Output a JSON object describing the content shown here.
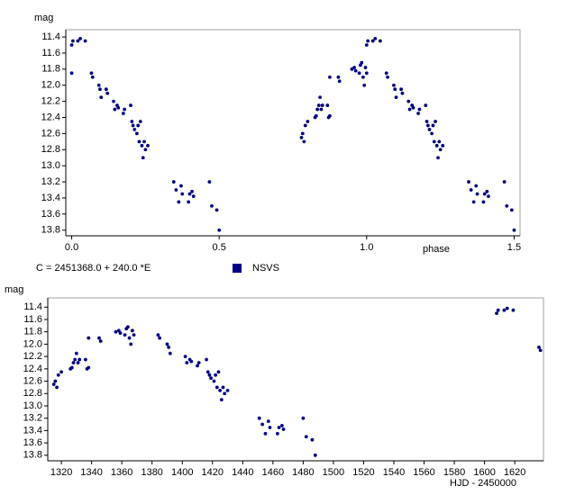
{
  "chart_data": [
    {
      "type": "scatter",
      "xlabel": "phase",
      "ylabel": "mag",
      "annotation": "C = 2451368.0 + 240.0 *E",
      "xlim": [
        -0.02,
        1.52
      ],
      "ylim": [
        13.87,
        11.31
      ],
      "xticks": [
        {
          "value": 0,
          "label": "0.0"
        },
        0.5,
        {
          "value": 1,
          "label": "1.0"
        },
        1.5
      ],
      "yticks": [
        11.4,
        11.6,
        11.8,
        {
          "value": 12,
          "label": "12.0"
        },
        12.2,
        12.4,
        12.6,
        12.8,
        {
          "value": 13,
          "label": "13.0"
        },
        13.2,
        13.4,
        13.6,
        13.8
      ],
      "x": [
        0.0,
        0.067,
        0.071,
        0.092,
        0.096,
        0.1,
        0.142,
        0.146,
        0.154,
        0.158,
        0.175,
        0.179,
        0.2,
        0.204,
        0.208,
        0.213,
        0.221,
        0.225,
        0.229,
        0.233,
        0.238,
        0.242,
        0.246,
        0.25,
        0.258,
        0.346,
        0.354,
        0.363,
        0.371,
        0.375,
        0.396,
        0.4,
        0.408,
        0.413,
        0.467,
        0.475,
        0.492,
        0.5,
        0.0,
        0.004,
        0.021,
        0.029,
        0.046,
        0.117,
        0.121,
        1.0,
        1.067,
        1.071,
        1.092,
        1.096,
        1.1,
        1.142,
        1.146,
        1.154,
        1.158,
        1.175,
        1.179,
        1.2,
        1.204,
        1.208,
        1.213,
        1.221,
        1.225,
        1.229,
        1.233,
        1.238,
        1.242,
        1.246,
        1.25,
        1.258,
        1.346,
        1.354,
        1.363,
        1.371,
        1.375,
        1.396,
        1.4,
        1.408,
        1.413,
        1.467,
        1.475,
        1.492,
        1.5,
        1.0,
        1.004,
        1.021,
        1.029,
        1.046,
        1.117,
        1.121,
        0.779,
        0.783,
        0.788,
        0.792,
        0.8,
        0.825,
        0.829,
        0.833,
        0.838,
        0.842,
        0.846,
        0.85,
        0.867,
        0.871,
        0.875,
        0.875,
        0.904,
        0.908,
        0.95,
        0.958,
        0.963,
        0.975,
        0.979,
        0.983,
        0.988,
        0.992,
        0.996
      ],
      "series": [
        {
          "name": "NSVS",
          "color": "#000080",
          "values": [
            11.85,
            11.85,
            11.9,
            12.0,
            12.05,
            12.15,
            12.2,
            12.3,
            12.25,
            12.28,
            12.35,
            12.3,
            12.25,
            12.45,
            12.5,
            12.55,
            12.6,
            12.5,
            12.7,
            12.45,
            12.75,
            12.9,
            12.7,
            12.8,
            12.75,
            13.2,
            13.3,
            13.45,
            13.25,
            13.35,
            13.45,
            13.35,
            13.32,
            13.38,
            13.2,
            13.5,
            13.55,
            13.8,
            11.5,
            11.45,
            11.45,
            11.42,
            11.45,
            12.05,
            12.1,
            11.85,
            11.85,
            11.9,
            12.0,
            12.05,
            12.15,
            12.2,
            12.3,
            12.25,
            12.28,
            12.35,
            12.3,
            12.25,
            12.45,
            12.5,
            12.55,
            12.6,
            12.5,
            12.7,
            12.45,
            12.75,
            12.9,
            12.7,
            12.8,
            12.75,
            13.2,
            13.3,
            13.45,
            13.25,
            13.35,
            13.45,
            13.35,
            13.32,
            13.38,
            13.2,
            13.5,
            13.55,
            13.8,
            11.5,
            11.45,
            11.45,
            11.42,
            11.45,
            12.05,
            12.1,
            12.65,
            12.6,
            12.7,
            12.5,
            12.45,
            12.4,
            12.38,
            12.3,
            12.25,
            12.15,
            12.3,
            12.25,
            12.25,
            12.4,
            12.38,
            11.9,
            11.9,
            11.95,
            11.8,
            11.78,
            11.82,
            11.85,
            11.75,
            11.72,
            11.9,
            12.0,
            11.78
          ]
        }
      ]
    },
    {
      "type": "scatter",
      "xlabel": "HJD - 2450000",
      "ylabel": "mag",
      "xlim": [
        1311,
        1639
      ],
      "ylim": [
        13.89,
        11.25
      ],
      "xticks": [
        1320,
        1340,
        1360,
        1380,
        1400,
        1420,
        1440,
        1460,
        1480,
        1500,
        1520,
        1540,
        1560,
        1580,
        1600,
        1620
      ],
      "yticks": [
        11.4,
        11.6,
        11.8,
        {
          "value": 12,
          "label": "12.0"
        },
        12.2,
        12.4,
        12.6,
        12.8,
        {
          "value": 13,
          "label": "13.0"
        },
        13.2,
        13.4,
        13.6,
        13.8
      ],
      "x": [
        1315,
        1316,
        1317,
        1318,
        1320,
        1326,
        1327,
        1328,
        1329,
        1330,
        1331,
        1332,
        1336,
        1337,
        1338,
        1338,
        1345,
        1346,
        1356,
        1358,
        1359,
        1362,
        1363,
        1364,
        1365,
        1366,
        1367,
        1368,
        1384,
        1385,
        1390,
        1391,
        1392,
        1402,
        1403,
        1405,
        1406,
        1410,
        1411,
        1416,
        1417,
        1418,
        1419,
        1421,
        1422,
        1423,
        1424,
        1425,
        1426,
        1427,
        1428,
        1430,
        1451,
        1453,
        1455,
        1457,
        1458,
        1463,
        1464,
        1466,
        1467,
        1480,
        1482,
        1486,
        1488,
        1608,
        1609,
        1613,
        1615,
        1619,
        1636,
        1637
      ],
      "series": [
        {
          "color": "#000080",
          "values": [
            12.65,
            12.6,
            12.7,
            12.5,
            12.45,
            12.4,
            12.38,
            12.3,
            12.25,
            12.15,
            12.3,
            12.25,
            12.25,
            12.4,
            12.38,
            11.9,
            11.9,
            11.95,
            11.8,
            11.78,
            11.82,
            11.85,
            11.75,
            11.72,
            11.9,
            12.0,
            11.78,
            11.85,
            11.85,
            11.9,
            12.0,
            12.05,
            12.15,
            12.2,
            12.3,
            12.25,
            12.28,
            12.35,
            12.3,
            12.25,
            12.45,
            12.5,
            12.55,
            12.6,
            12.5,
            12.7,
            12.45,
            12.75,
            12.9,
            12.7,
            12.8,
            12.75,
            13.2,
            13.3,
            13.45,
            13.25,
            13.35,
            13.45,
            13.35,
            13.32,
            13.38,
            13.2,
            13.5,
            13.55,
            13.8,
            11.5,
            11.45,
            11.45,
            11.42,
            11.45,
            12.05,
            12.1
          ]
        }
      ]
    }
  ]
}
